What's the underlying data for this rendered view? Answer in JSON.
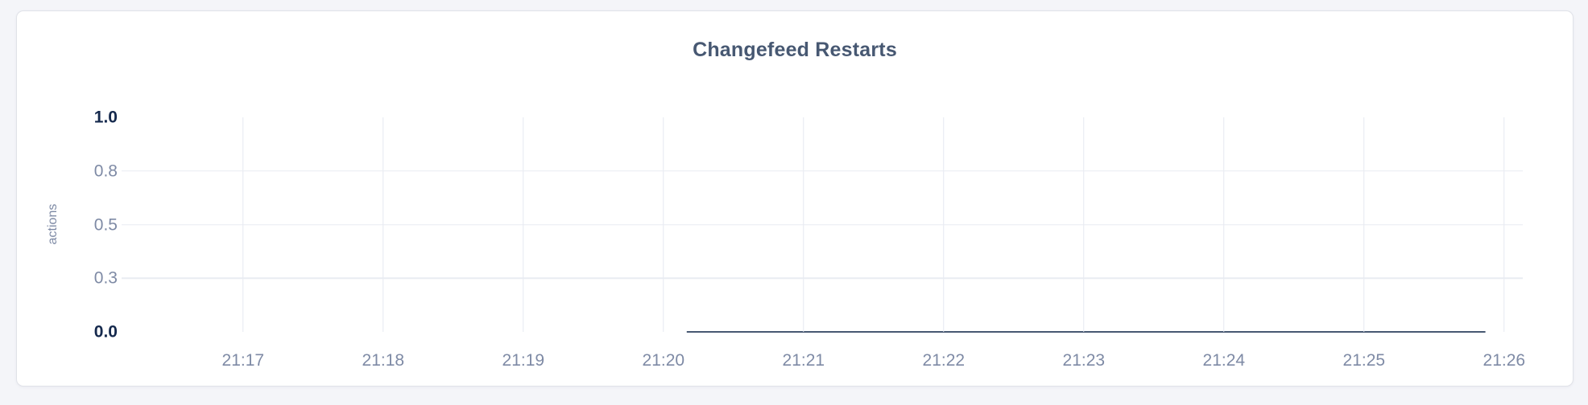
{
  "page": {
    "background": "#f4f5f9"
  },
  "card": {
    "background": "#ffffff",
    "border_color": "#e0e2e8"
  },
  "chart_data": {
    "type": "line",
    "title": "Changefeed Restarts",
    "ylabel": "actions",
    "xlabel": "",
    "legend": "none",
    "grid": true,
    "ylim": [
      0,
      1
    ],
    "x_domain": [
      "21:16:08",
      "21:26:08"
    ],
    "x_ticks": [
      {
        "time": "21:17:00",
        "label": "21:17"
      },
      {
        "time": "21:18:00",
        "label": "21:18"
      },
      {
        "time": "21:19:00",
        "label": "21:19"
      },
      {
        "time": "21:20:00",
        "label": "21:20"
      },
      {
        "time": "21:21:00",
        "label": "21:21"
      },
      {
        "time": "21:22:00",
        "label": "21:22"
      },
      {
        "time": "21:23:00",
        "label": "21:23"
      },
      {
        "time": "21:24:00",
        "label": "21:24"
      },
      {
        "time": "21:25:00",
        "label": "21:25"
      },
      {
        "time": "21:26:00",
        "label": "21:26"
      }
    ],
    "y_ticks": [
      {
        "value": 1,
        "label": "1.0",
        "emphasis": true,
        "gridline": false
      },
      {
        "value": 0.75,
        "label": "0.8",
        "emphasis": false,
        "gridline": true
      },
      {
        "value": 0.5,
        "label": "0.5",
        "emphasis": false,
        "gridline": true
      },
      {
        "value": 0.25,
        "label": "0.3",
        "emphasis": false,
        "gridline": true
      },
      {
        "value": 0,
        "label": "0.0",
        "emphasis": true,
        "gridline": false
      }
    ],
    "series": [
      {
        "name": "actions",
        "color": "#475872",
        "points": [
          {
            "x": "21:20:10",
            "y": 0
          },
          {
            "x": "21:25:52",
            "y": 0
          }
        ]
      }
    ],
    "colors": {
      "title": "#475872",
      "tick_label": "#7e8aa5",
      "tick_label_emphasis": "#15294d",
      "gridline": "#e7eaf1",
      "line": "#475872"
    }
  }
}
